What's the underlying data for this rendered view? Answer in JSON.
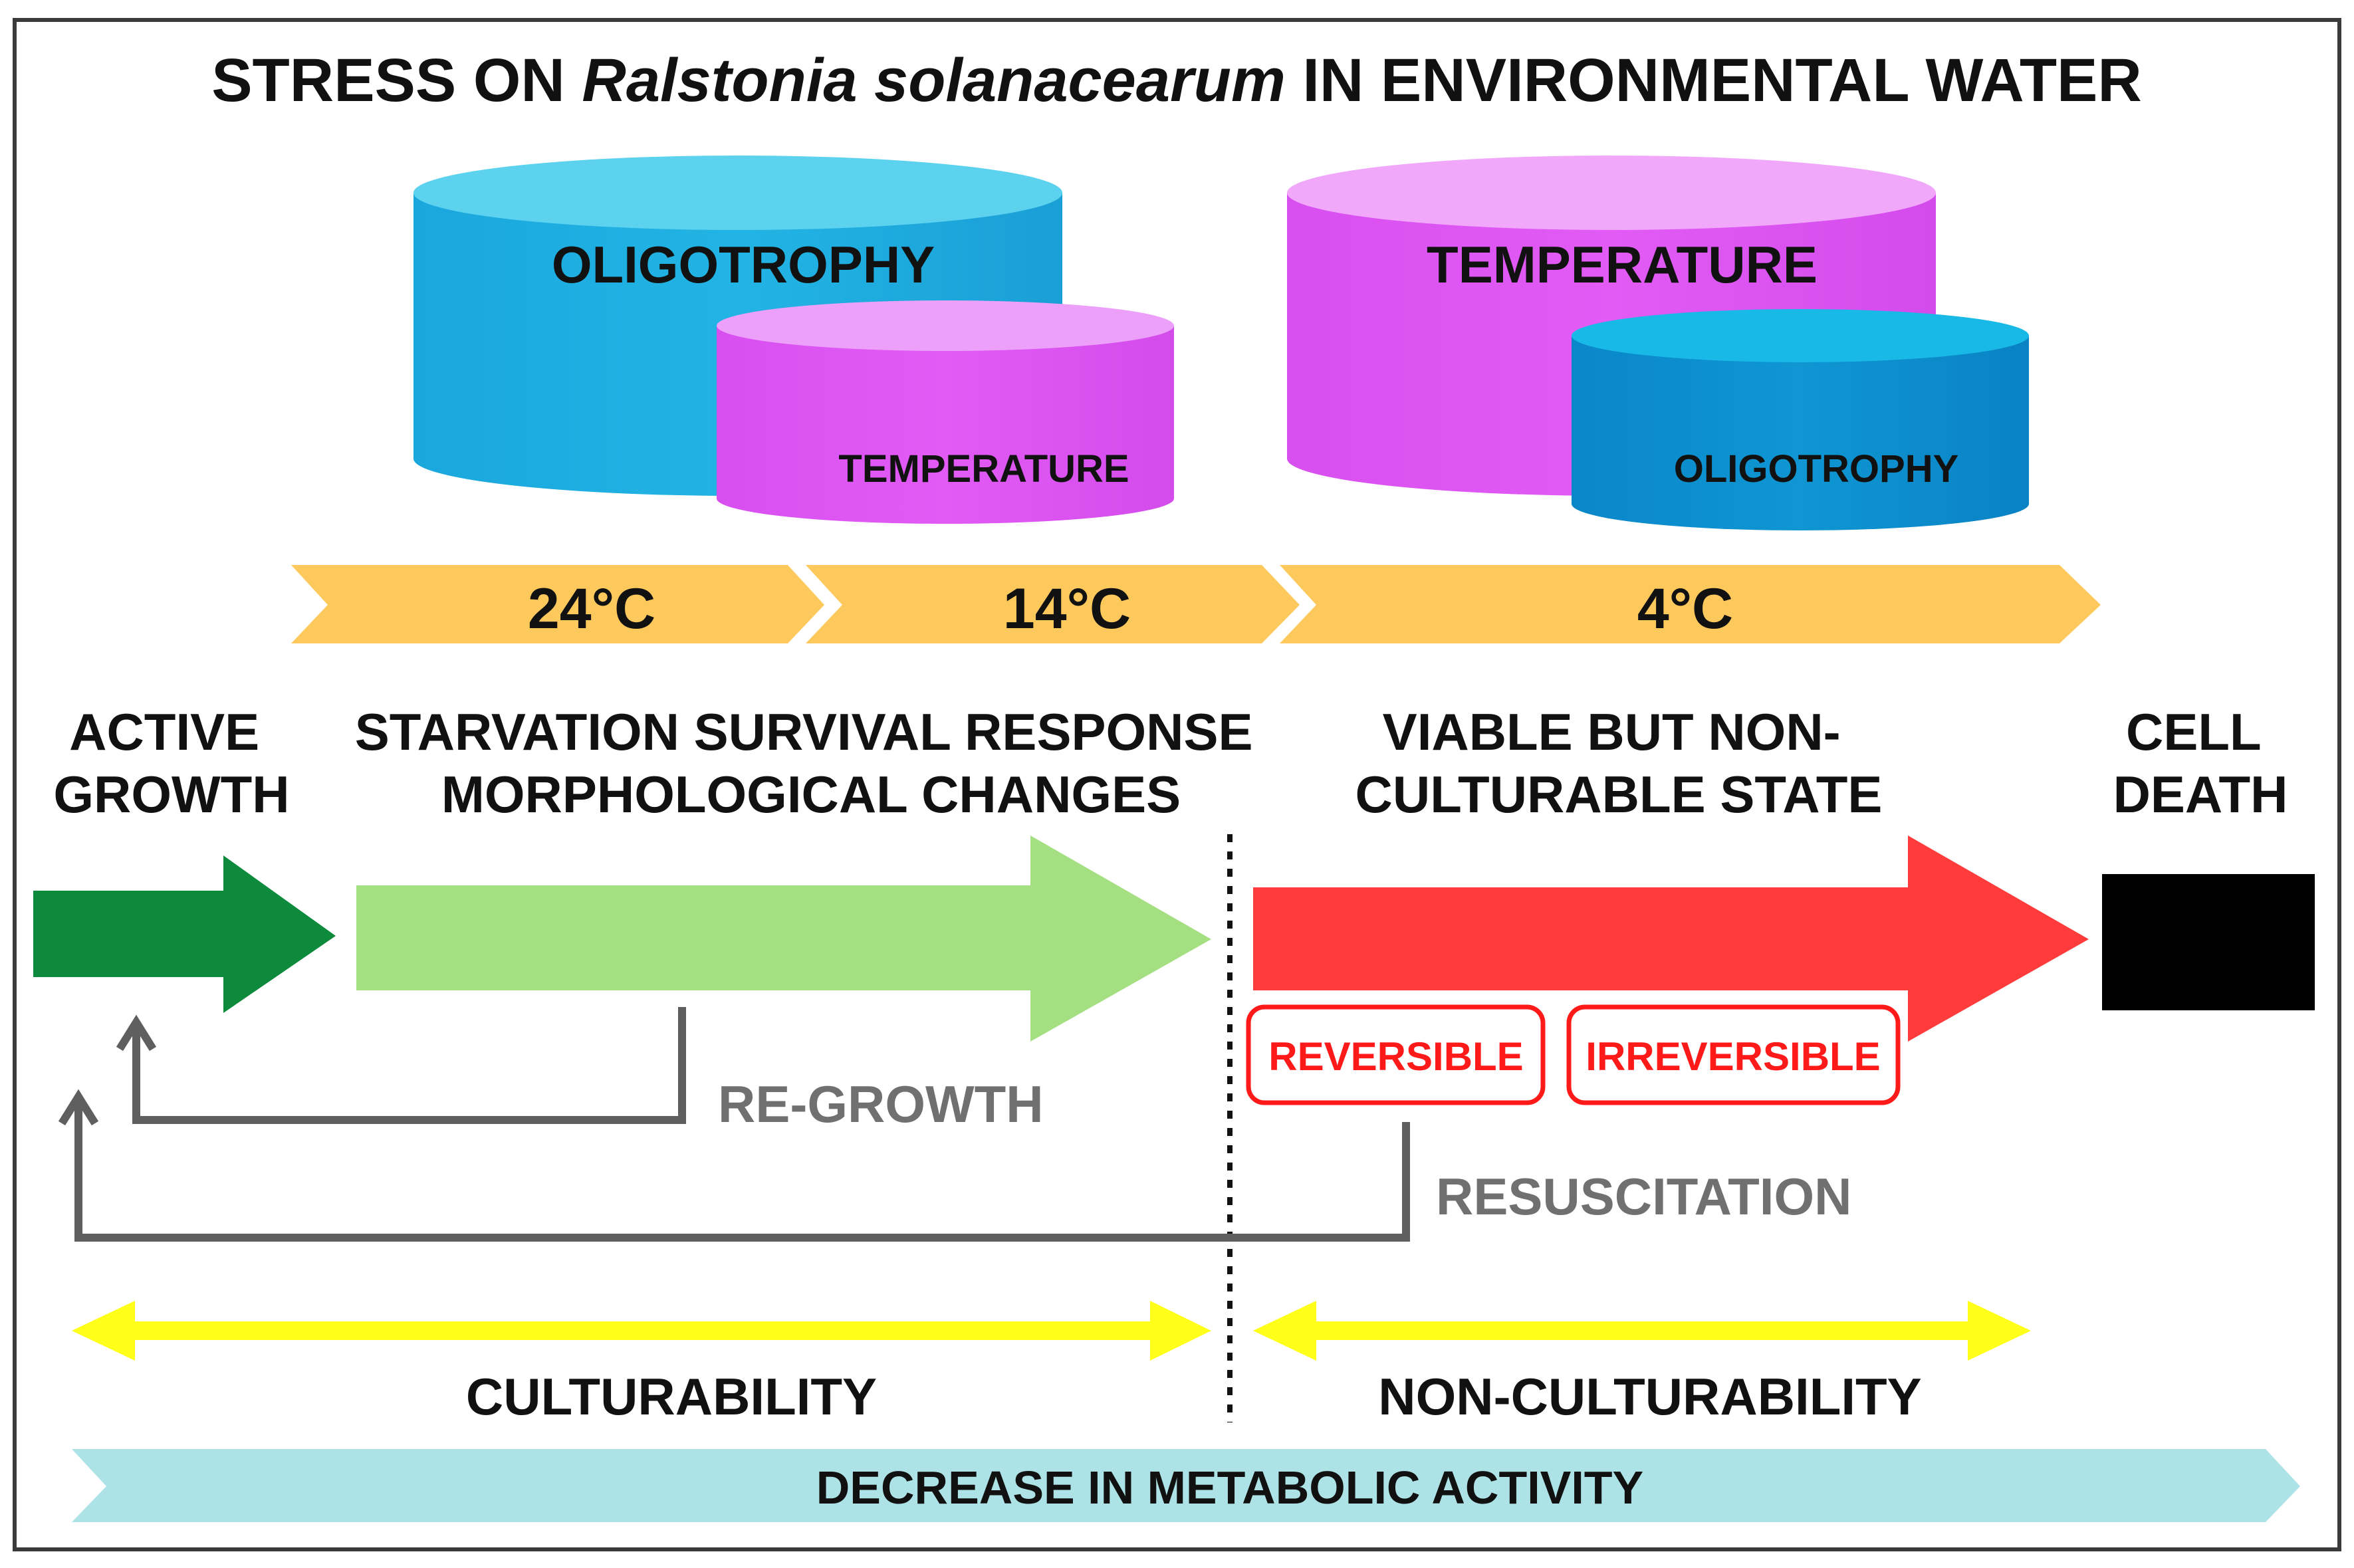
{
  "title": {
    "prefix": "STRESS ON ",
    "italic": "Ralstonia solanacearum",
    "suffix": " IN ENVIRONMENTAL WATER"
  },
  "cylinders": {
    "left_big": "OLIGOTROPHY",
    "left_small": "TEMPERATURE",
    "right_big": "TEMPERATURE",
    "right_small": "OLIGOTROPHY"
  },
  "temperatures": [
    "24°C",
    "14°C",
    "4°C"
  ],
  "stages": {
    "active_growth": [
      "ACTIVE",
      "GROWTH"
    ],
    "starvation": [
      "STARVATION SURVIVAL RESPONSE",
      "MORPHOLOGICAL CHANGES"
    ],
    "vbnc": [
      "VIABLE BUT NON-",
      "CULTURABLE STATE"
    ],
    "cell_death": [
      "CELL",
      "DEATH"
    ]
  },
  "badges": {
    "reversible": "REVERSIBLE",
    "irreversible": "IRREVERSIBLE"
  },
  "feedback": {
    "regrowth": "RE-GROWTH",
    "resuscitation": "RESUSCITATION"
  },
  "ranges": {
    "culturability": "CULTURABILITY",
    "non_culturability": "NON-CULTURABILITY"
  },
  "bottom_banner": "DECREASE IN METABOLIC ACTIVITY",
  "colors": {
    "cyan": "#36c2e6",
    "magenta": "#e46cf6",
    "orange_chevron": "#fdc95c",
    "dark_green": "#0e8a3c",
    "light_green": "#a4df82",
    "red": "#ff3b3b",
    "yellow": "#ffff1a",
    "banner": "#ade3e6",
    "gray_line": "#5f5f5f"
  }
}
